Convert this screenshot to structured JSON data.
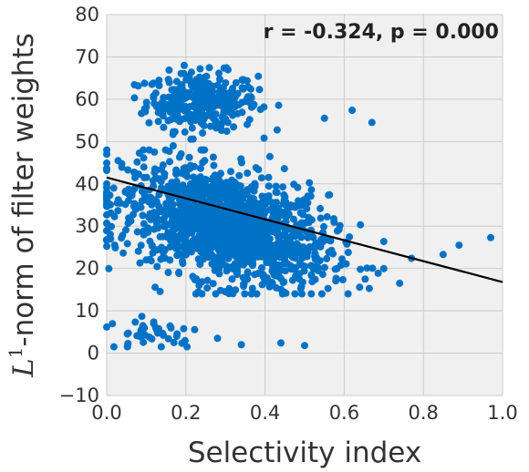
{
  "chart_data": {
    "type": "scatter",
    "title": "",
    "xlabel": "Selectivity index",
    "ylabel_base": "L",
    "ylabel_sup": "1",
    "ylabel_rest": "-norm of filter weights",
    "xlim": [
      0.0,
      1.0
    ],
    "ylim": [
      -10,
      80
    ],
    "xticks": [
      "0.0",
      "0.2",
      "0.4",
      "0.6",
      "0.8",
      "1.0"
    ],
    "yticks": [
      "−10",
      "0",
      "10",
      "20",
      "30",
      "40",
      "50",
      "60",
      "70",
      "80"
    ],
    "grid": true,
    "annotation": "r = -0.324, p = 0.000",
    "colors": {
      "points": "#0072C6",
      "fit_line": "#000000",
      "background": "#F0F0F0",
      "grid": "#CBCBCB"
    },
    "fit_line": {
      "x": [
        0.0,
        1.0
      ],
      "y": [
        41.5,
        16.8
      ]
    },
    "clusters": [
      {
        "name": "upper",
        "n": 320,
        "x_center": 0.24,
        "x_sd": 0.07,
        "x_min": 0.07,
        "x_max": 0.5,
        "y_center": 59.5,
        "y_sd": 3.4,
        "y_min": 49,
        "y_max": 68
      },
      {
        "name": "main",
        "n": 1400,
        "x_center": 0.3,
        "x_sd": 0.13,
        "x_min": 0.0,
        "x_max": 0.7,
        "y_center": 30.0,
        "y_sd": 6.5,
        "y_min": 14,
        "y_max": 48
      },
      {
        "name": "lower",
        "n": 40,
        "x_center": 0.12,
        "x_sd": 0.06,
        "x_min": 0.0,
        "x_max": 0.35,
        "y_center": 5.0,
        "y_sd": 2.2,
        "y_min": 1.5,
        "y_max": 9.5
      }
    ],
    "extra_points": [
      {
        "x": 0.67,
        "y": 54.5
      },
      {
        "x": 0.62,
        "y": 57.4
      },
      {
        "x": 0.55,
        "y": 55.5
      },
      {
        "x": 0.97,
        "y": 27.3
      },
      {
        "x": 0.89,
        "y": 25.5
      },
      {
        "x": 0.85,
        "y": 23.3
      },
      {
        "x": 0.77,
        "y": 22.4
      },
      {
        "x": 0.74,
        "y": 16.5
      },
      {
        "x": 0.7,
        "y": 20.0
      },
      {
        "x": 0.44,
        "y": 2.4
      },
      {
        "x": 0.5,
        "y": 1.8
      },
      {
        "x": 0.34,
        "y": 2.0
      },
      {
        "x": 0.28,
        "y": 3.5
      },
      {
        "x": 0.01,
        "y": 27.0
      },
      {
        "x": 0.02,
        "y": 25.5
      }
    ]
  }
}
